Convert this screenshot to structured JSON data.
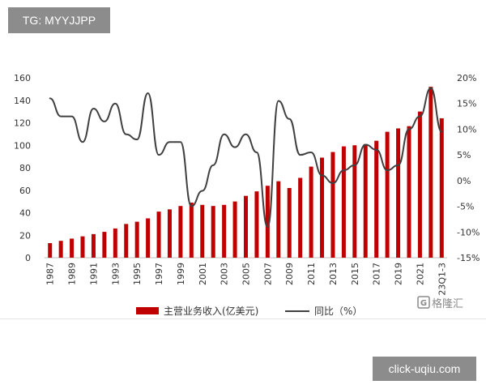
{
  "overlay": {
    "top_badge": "TG: MYYJJPP",
    "bottom_badge": "click-uqiu.com",
    "logo_text": "格隆汇"
  },
  "chart_data": {
    "type": "bar+line",
    "categories": [
      "1987",
      "1988",
      "1989",
      "1990",
      "1991",
      "1992",
      "1993",
      "1994",
      "1995",
      "1996",
      "1997",
      "1998",
      "1999",
      "2000",
      "2001",
      "2002",
      "2003",
      "2004",
      "2005",
      "2006",
      "2007",
      "2008",
      "2009",
      "2010",
      "2011",
      "2012",
      "2013",
      "2014",
      "2015",
      "2016",
      "2017",
      "2018",
      "2019",
      "2020",
      "2021",
      "2022",
      "23Q1-3"
    ],
    "x_tick_labels": [
      "1987",
      "1989",
      "1991",
      "1993",
      "1995",
      "1997",
      "1999",
      "2001",
      "2003",
      "2005",
      "2007",
      "2009",
      "2011",
      "2013",
      "2015",
      "2017",
      "2019",
      "2021",
      "23Q1-3"
    ],
    "series": [
      {
        "name": "主营业务收入(亿美元)",
        "type": "bar",
        "axis": "left",
        "color": "#c00000",
        "values": [
          13,
          15,
          17,
          19,
          21,
          23,
          26,
          30,
          32,
          35,
          41,
          43,
          46,
          49,
          47,
          46,
          47,
          50,
          55,
          59,
          64,
          68,
          62,
          71,
          81,
          89,
          94,
          99,
          100,
          101,
          104,
          112,
          115,
          117,
          130,
          152,
          124
        ]
      },
      {
        "name": "同比（%）",
        "type": "line",
        "axis": "right",
        "color": "#404040",
        "values": [
          16,
          12.5,
          12.5,
          7.5,
          14,
          11.5,
          15,
          9,
          8,
          17,
          5,
          7.5,
          7.5,
          -5,
          -2,
          3,
          9,
          6.5,
          9,
          5.5,
          -9,
          15.5,
          12,
          5,
          5.5,
          1,
          -0.5,
          2,
          3,
          7,
          6,
          2,
          3,
          10,
          12.5,
          18,
          9.5
        ]
      }
    ],
    "left_axis": {
      "ylim": [
        0,
        160
      ],
      "ticks": [
        "0",
        "20",
        "40",
        "60",
        "80",
        "100",
        "120",
        "140",
        "160"
      ]
    },
    "right_axis": {
      "ylim": [
        -15,
        20
      ],
      "ticks": [
        "-15%",
        "-10%",
        "-5%",
        "0%",
        "5%",
        "10%",
        "15%",
        "20%"
      ]
    },
    "grid": false,
    "legend_position": "bottom"
  }
}
